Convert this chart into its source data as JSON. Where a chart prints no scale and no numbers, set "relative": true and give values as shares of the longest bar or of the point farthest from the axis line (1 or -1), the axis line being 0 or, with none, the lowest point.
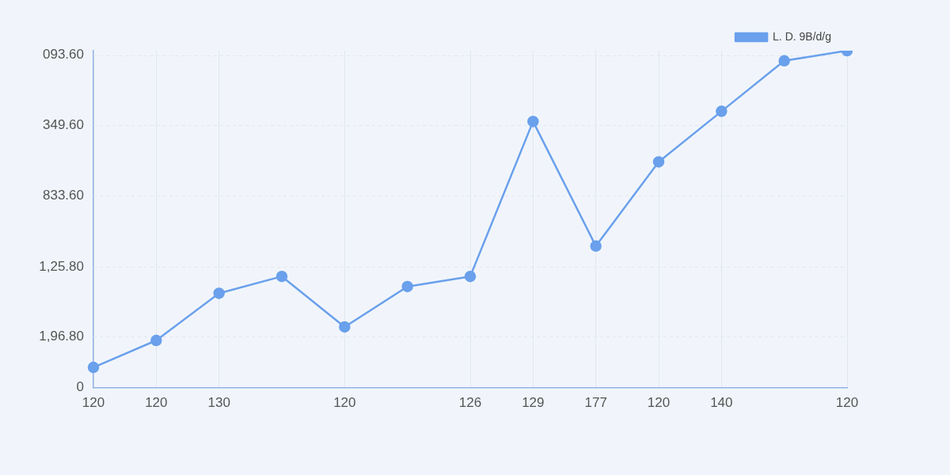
{
  "chart_data": {
    "type": "line",
    "relative": true,
    "categories": [
      "120",
      "120",
      "130",
      null,
      "120",
      null,
      "126",
      "129",
      "177",
      "120",
      "140",
      null,
      "120"
    ],
    "series": [
      {
        "name": "L. D. 9B/d/g",
        "color": "#6aa0ec",
        "values": [
          0.06,
          0.14,
          0.28,
          0.33,
          0.18,
          0.3,
          0.33,
          0.79,
          0.42,
          0.67,
          0.82,
          0.97,
          1
        ]
      }
    ],
    "annotations": [
      "093.60",
      "349.60",
      "833.60",
      "1,25.80",
      "1,96.80",
      "0"
    ],
    "grid": true,
    "legend": "top right",
    "marker": "circle",
    "line_style": "solid"
  }
}
